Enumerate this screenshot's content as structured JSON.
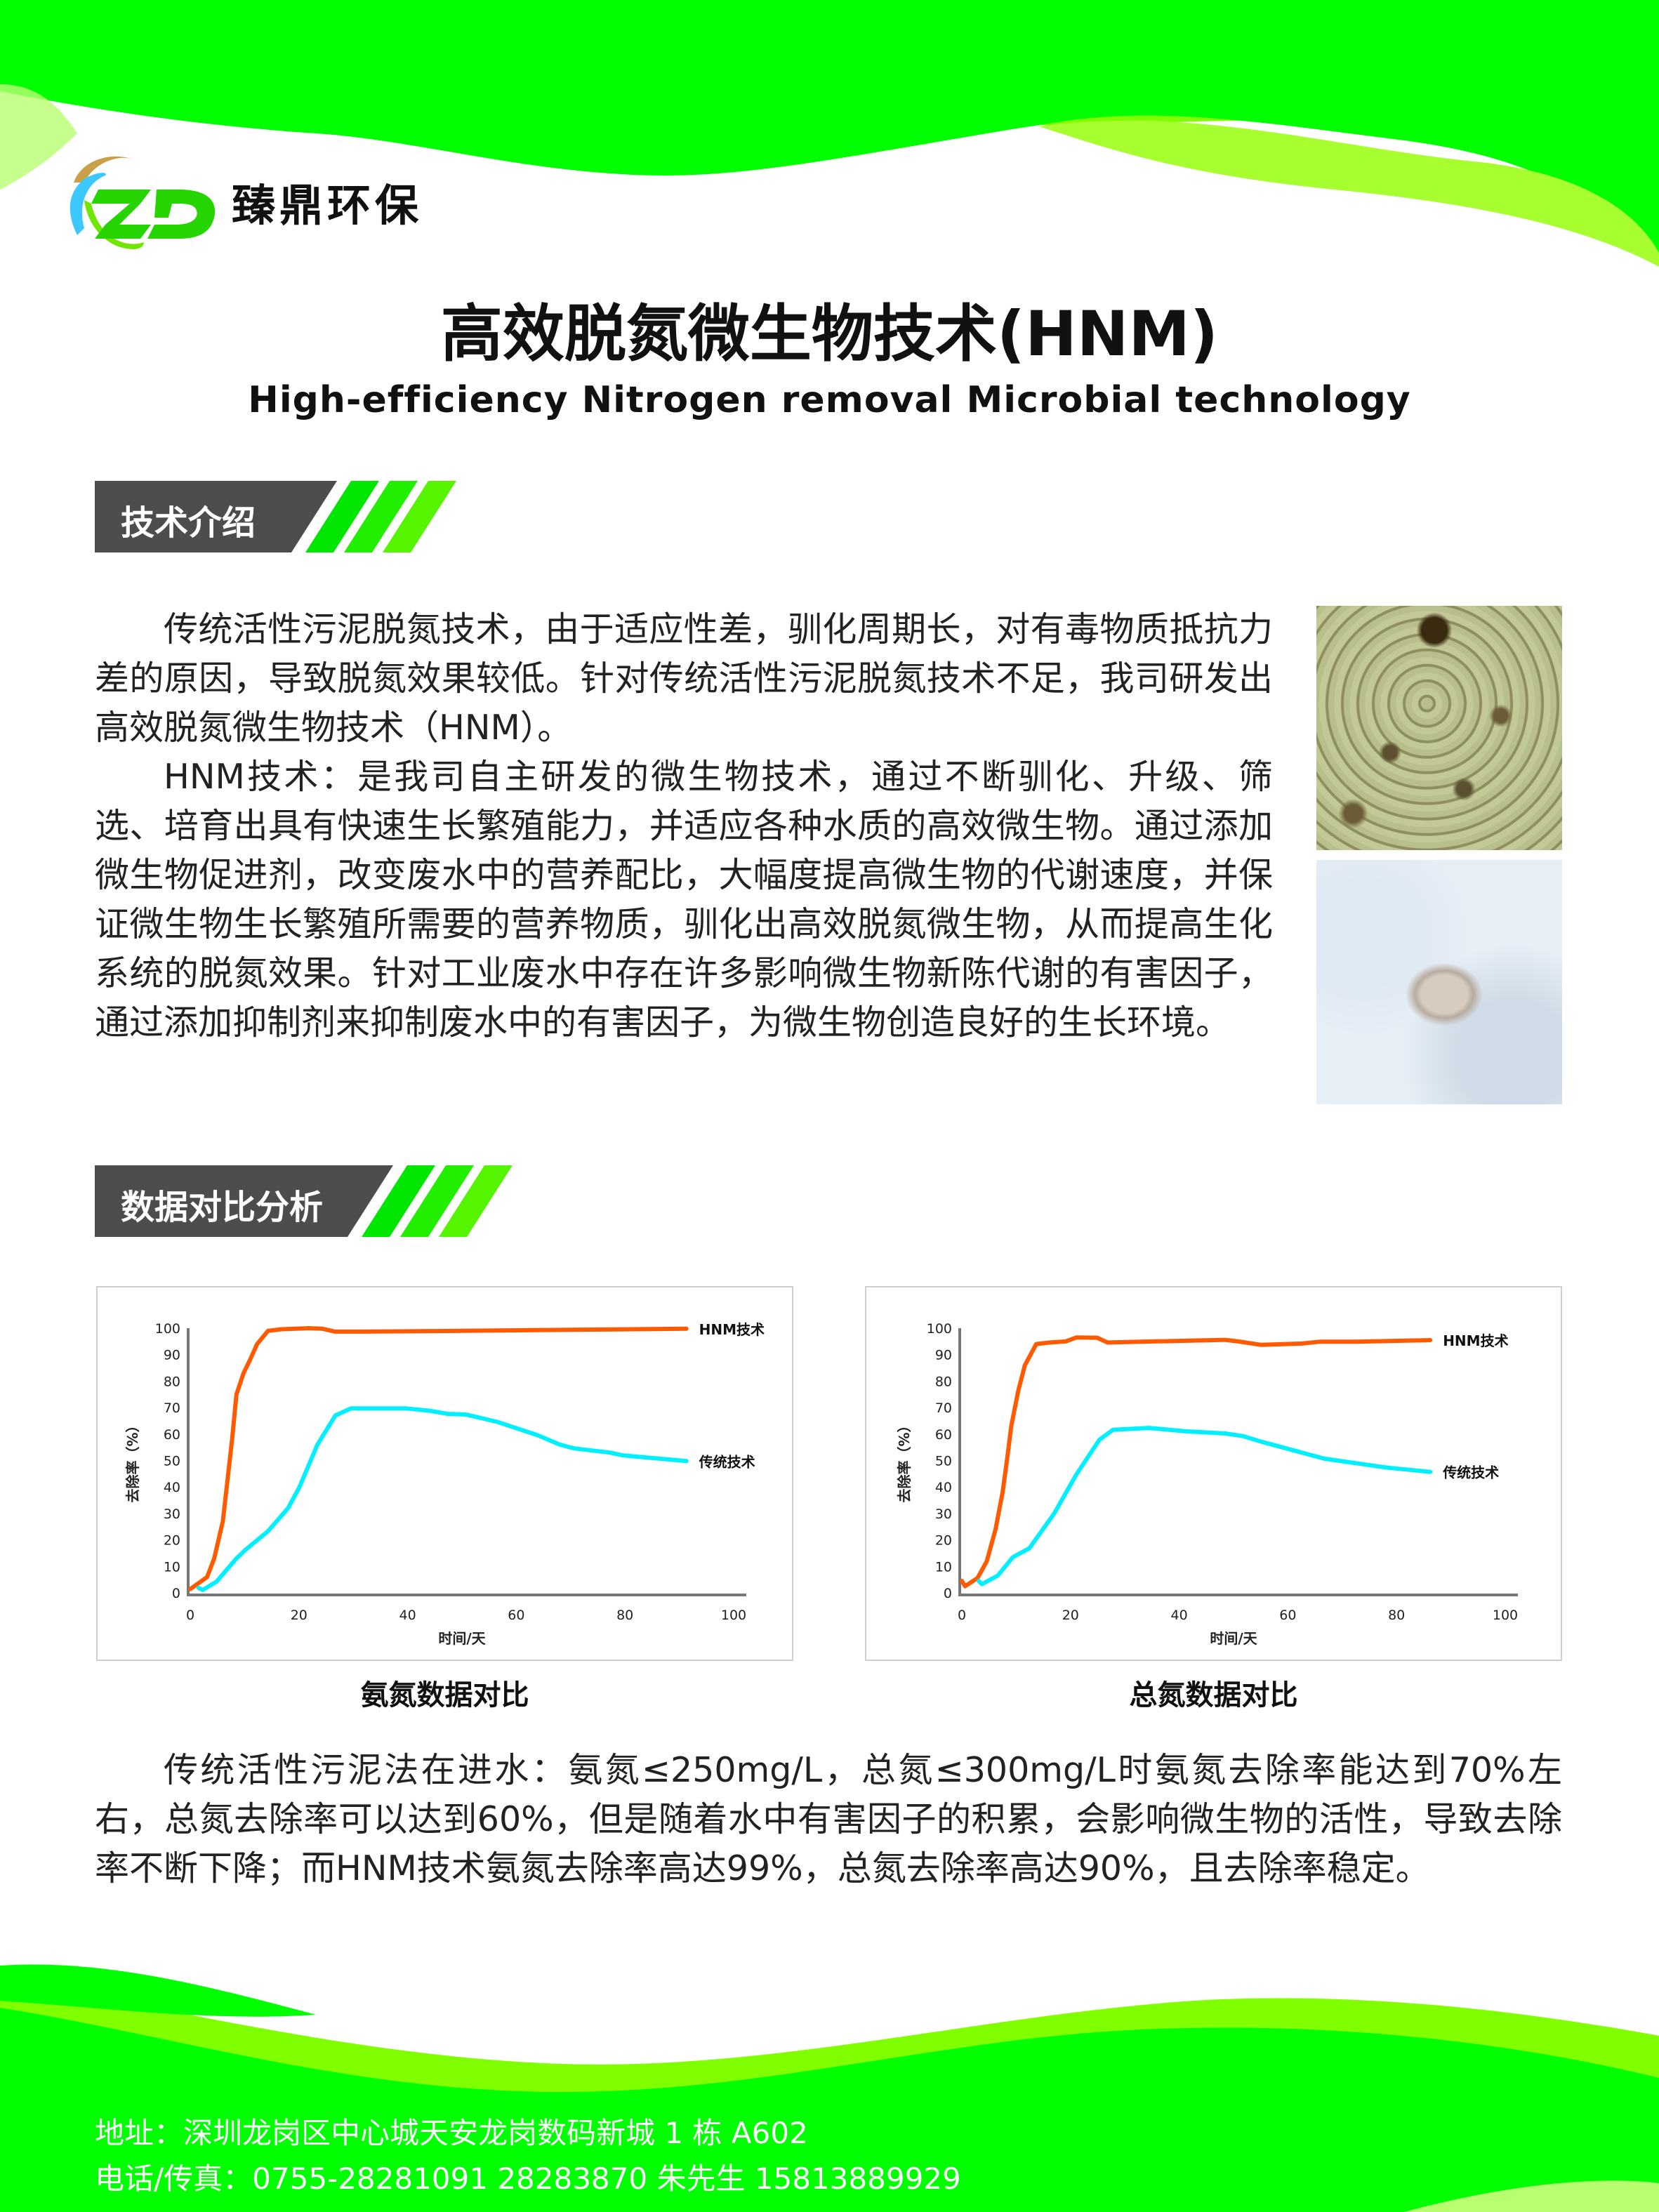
{
  "brand": {
    "name": "臻鼎环保",
    "logo_text": "ZD"
  },
  "header": {
    "title": "高效脱氮微生物技术(HNM)",
    "subtitle": "High-efficiency Nitrogen removal Microbial technology"
  },
  "section1": {
    "heading": "技术介绍",
    "paragraphs": [
      "传统活性污泥脱氮技术，由于适应性差，驯化周期长，对有毒物质抵抗力差的原因，导致脱氮效果较低。针对传统活性污泥脱氮技术不足，我司研发出高效脱氮微生物技术（HNM）。",
      "HNM技术：是我司自主研发的微生物技术，通过不断驯化、升级、筛选、培育出具有快速生长繁殖能力，并适应各种水质的高效微生物。通过添加微生物促进剂，改变废水中的营养配比，大幅度提高微生物的代谢速度，并保证微生物生长繁殖所需要的营养物质，驯化出高效脱氮微生物，从而提高生化系统的脱氮效果。针对工业废水中存在许多影响微生物新陈代谢的有害因子，通过添加抑制剂来抑制废水中的有害因子，为微生物创造良好的生长环境。"
    ]
  },
  "section2": {
    "heading": "数据对比分析",
    "summary": "传统活性污泥法在进水：氨氮≤250mg/L，总氮≤300mg/L时氨氮去除率能达到70%左右，总氮去除率可以达到60%，但是随着水中有害因子的积累，会影响微生物的活性，导致去除率不断下降；而HNM技术氨氮去除率高达99%，总氮去除率高达90%，且去除率稳定。"
  },
  "colors": {
    "green": "#00ff00",
    "light_green": "#7fff00",
    "dark_gray": "#4d4d4d",
    "hnm_line": "#ff5a00",
    "traditional_line": "#00f0ff"
  },
  "chart_data": [
    {
      "type": "line",
      "caption": "氨氮数据对比",
      "xlabel": "时间/天",
      "ylabel": "去除率（%）",
      "xlim": [
        0,
        100
      ],
      "ylim": [
        0,
        100
      ],
      "xticks": [
        0,
        20,
        40,
        60,
        80,
        100
      ],
      "yticks": [
        0,
        10,
        20,
        30,
        40,
        50,
        60,
        70,
        80,
        90,
        100
      ],
      "grid": false,
      "series": [
        {
          "name": "HNM技术",
          "color": "#ff5a00",
          "points": [
            [
              0,
              1.4
            ],
            [
              3.1,
              6
            ],
            [
              4.4,
              13
            ],
            [
              6,
              27
            ],
            [
              7.7,
              58
            ],
            [
              8.5,
              75
            ],
            [
              9.8,
              83
            ],
            [
              11,
              88
            ],
            [
              12.3,
              94
            ],
            [
              14.3,
              99
            ],
            [
              16.8,
              99.6
            ],
            [
              21.8,
              100
            ],
            [
              24.3,
              99.8
            ],
            [
              26.7,
              98.7
            ],
            [
              31.7,
              98.7
            ],
            [
              50,
              99
            ],
            [
              70,
              99.4
            ],
            [
              91.3,
              99.8
            ]
          ]
        },
        {
          "name": "传统技术",
          "color": "#00f0ff",
          "points": [
            [
              1.5,
              1.9
            ],
            [
              2.3,
              1.1
            ],
            [
              4.8,
              4.2
            ],
            [
              8.5,
              13
            ],
            [
              10.2,
              16.3
            ],
            [
              14.3,
              23.3
            ],
            [
              18,
              32
            ],
            [
              20.1,
              40
            ],
            [
              23.4,
              56
            ],
            [
              26.7,
              67
            ],
            [
              29.6,
              69.7
            ],
            [
              39.6,
              69.7
            ],
            [
              44,
              68.8
            ],
            [
              47.4,
              67.6
            ],
            [
              50.7,
              67.4
            ],
            [
              56.5,
              64.6
            ],
            [
              64,
              59.5
            ],
            [
              68,
              56
            ],
            [
              70.6,
              54.6
            ],
            [
              77.2,
              53
            ],
            [
              79.7,
              51.9
            ],
            [
              91.3,
              49.8
            ]
          ]
        }
      ]
    },
    {
      "type": "line",
      "caption": "总氮数据对比",
      "xlabel": "时间/天",
      "ylabel": "去除率（%）",
      "xlim": [
        0,
        100
      ],
      "ylim": [
        0,
        100
      ],
      "xticks": [
        0,
        20,
        40,
        60,
        80,
        100
      ],
      "yticks": [
        0,
        10,
        20,
        30,
        40,
        50,
        60,
        70,
        80,
        90,
        100
      ],
      "grid": false,
      "series": [
        {
          "name": "HNM技术",
          "color": "#ff5a00",
          "points": [
            [
              0,
              4.5
            ],
            [
              0.6,
              2.5
            ],
            [
              2.9,
              5.6
            ],
            [
              4.6,
              12
            ],
            [
              6.2,
              24
            ],
            [
              7.5,
              38
            ],
            [
              8.3,
              50
            ],
            [
              9.1,
              63
            ],
            [
              10.4,
              76.5
            ],
            [
              11.6,
              86
            ],
            [
              13.7,
              94
            ],
            [
              16.2,
              94.6
            ],
            [
              19.1,
              95
            ],
            [
              21.1,
              96.5
            ],
            [
              24.9,
              96.4
            ],
            [
              26.8,
              94.6
            ],
            [
              35.2,
              95
            ],
            [
              48.5,
              95.6
            ],
            [
              50.9,
              95
            ],
            [
              55.1,
              93.7
            ],
            [
              62.6,
              94.2
            ],
            [
              65.9,
              94.9
            ],
            [
              72.5,
              94.9
            ],
            [
              86.2,
              95.5
            ]
          ]
        },
        {
          "name": "传统技术",
          "color": "#00f0ff",
          "points": [
            [
              3.1,
              4.5
            ],
            [
              3.7,
              3.3
            ],
            [
              6.6,
              6.5
            ],
            [
              9.4,
              13.5
            ],
            [
              12.4,
              16.8
            ],
            [
              17,
              30
            ],
            [
              21.1,
              44.8
            ],
            [
              25.3,
              57.8
            ],
            [
              27.8,
              61.6
            ],
            [
              34.4,
              62.3
            ],
            [
              41,
              61.1
            ],
            [
              48.5,
              60.2
            ],
            [
              51.8,
              59.2
            ],
            [
              55.1,
              57.1
            ],
            [
              60.9,
              53.9
            ],
            [
              66.7,
              50.7
            ],
            [
              72.5,
              49
            ],
            [
              78.3,
              47.3
            ],
            [
              86.2,
              45.7
            ]
          ]
        }
      ]
    }
  ],
  "footer": {
    "address": "地址：深圳龙岗区中心城天安龙岗数码新城 1 栋 A602",
    "phone": "电话/传真：0755-28281091 28283870  朱先生 15813889929"
  }
}
